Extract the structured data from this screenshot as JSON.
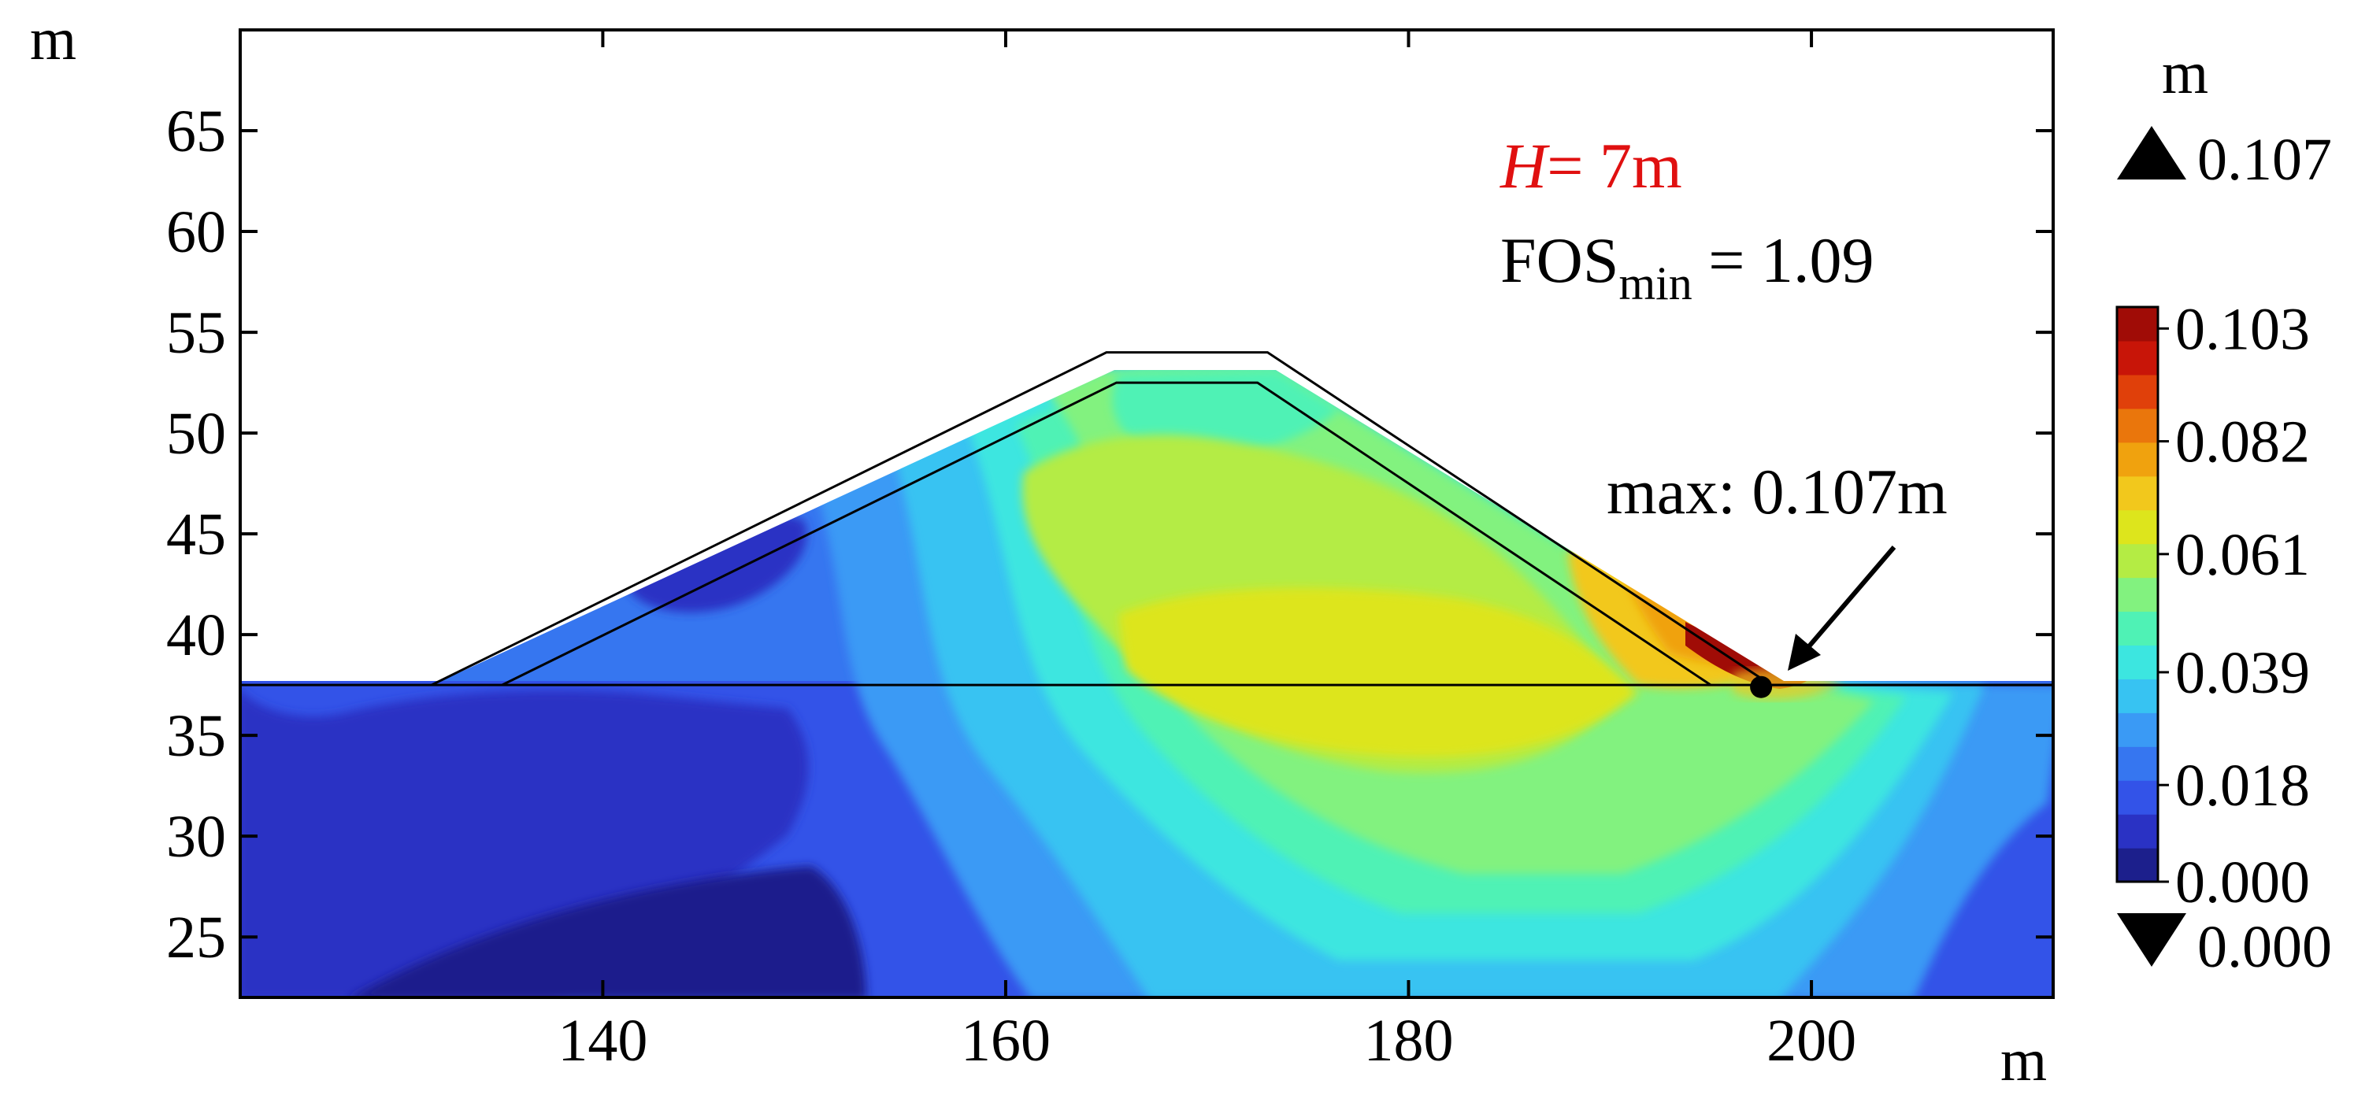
{
  "chart_data": {
    "type": "heatmap",
    "title": "",
    "annotation_height_label": {
      "var": "H",
      "rest": "= 7m",
      "color": "#e01010"
    },
    "annotation_fos": {
      "base": "FOS",
      "sub": "min",
      "rest": " = 1.09"
    },
    "annotation_max": {
      "label": "max: 0.107m",
      "point": {
        "x": 197.5,
        "y": 37.4
      }
    },
    "xlabel": "m",
    "ylabel": "m",
    "xlim": [
      122,
      212
    ],
    "ylim": [
      22,
      70
    ],
    "x_ticks": [
      140,
      160,
      180,
      200
    ],
    "y_ticks": [
      25,
      30,
      35,
      40,
      45,
      50,
      55,
      60,
      65
    ],
    "colorbar": {
      "unit": "m",
      "range": [
        0.0,
        0.107
      ],
      "max_marker_label": "0.107",
      "min_marker_label": "0.000",
      "tick_labels": [
        "0.103",
        "0.082",
        "0.061",
        "0.039",
        "0.018",
        "0.000"
      ],
      "tick_values": [
        0.103,
        0.082,
        0.061,
        0.039,
        0.018,
        0.0
      ],
      "levels": [
        "#1c1f8c",
        "#2a32c4",
        "#3353e8",
        "#3676f0",
        "#3a9af5",
        "#37c3f2",
        "#3ce6e0",
        "#4ff2b5",
        "#82f27f",
        "#b4ec44",
        "#dde51c",
        "#f2c81c",
        "#f0a20e",
        "#ea760c",
        "#e0400a",
        "#c81508",
        "#a00c06"
      ]
    },
    "embankment_outline": {
      "x": [
        131.5,
        165,
        173,
        198,
        212
      ],
      "y": [
        37.5,
        54,
        54,
        37.5,
        37.5
      ]
    },
    "inner_core_outline": {
      "x": [
        135,
        165.5,
        172.5,
        195
      ],
      "y": [
        37.5,
        52.5,
        52.5,
        37.5
      ]
    },
    "ground_line_y": 37.5
  }
}
